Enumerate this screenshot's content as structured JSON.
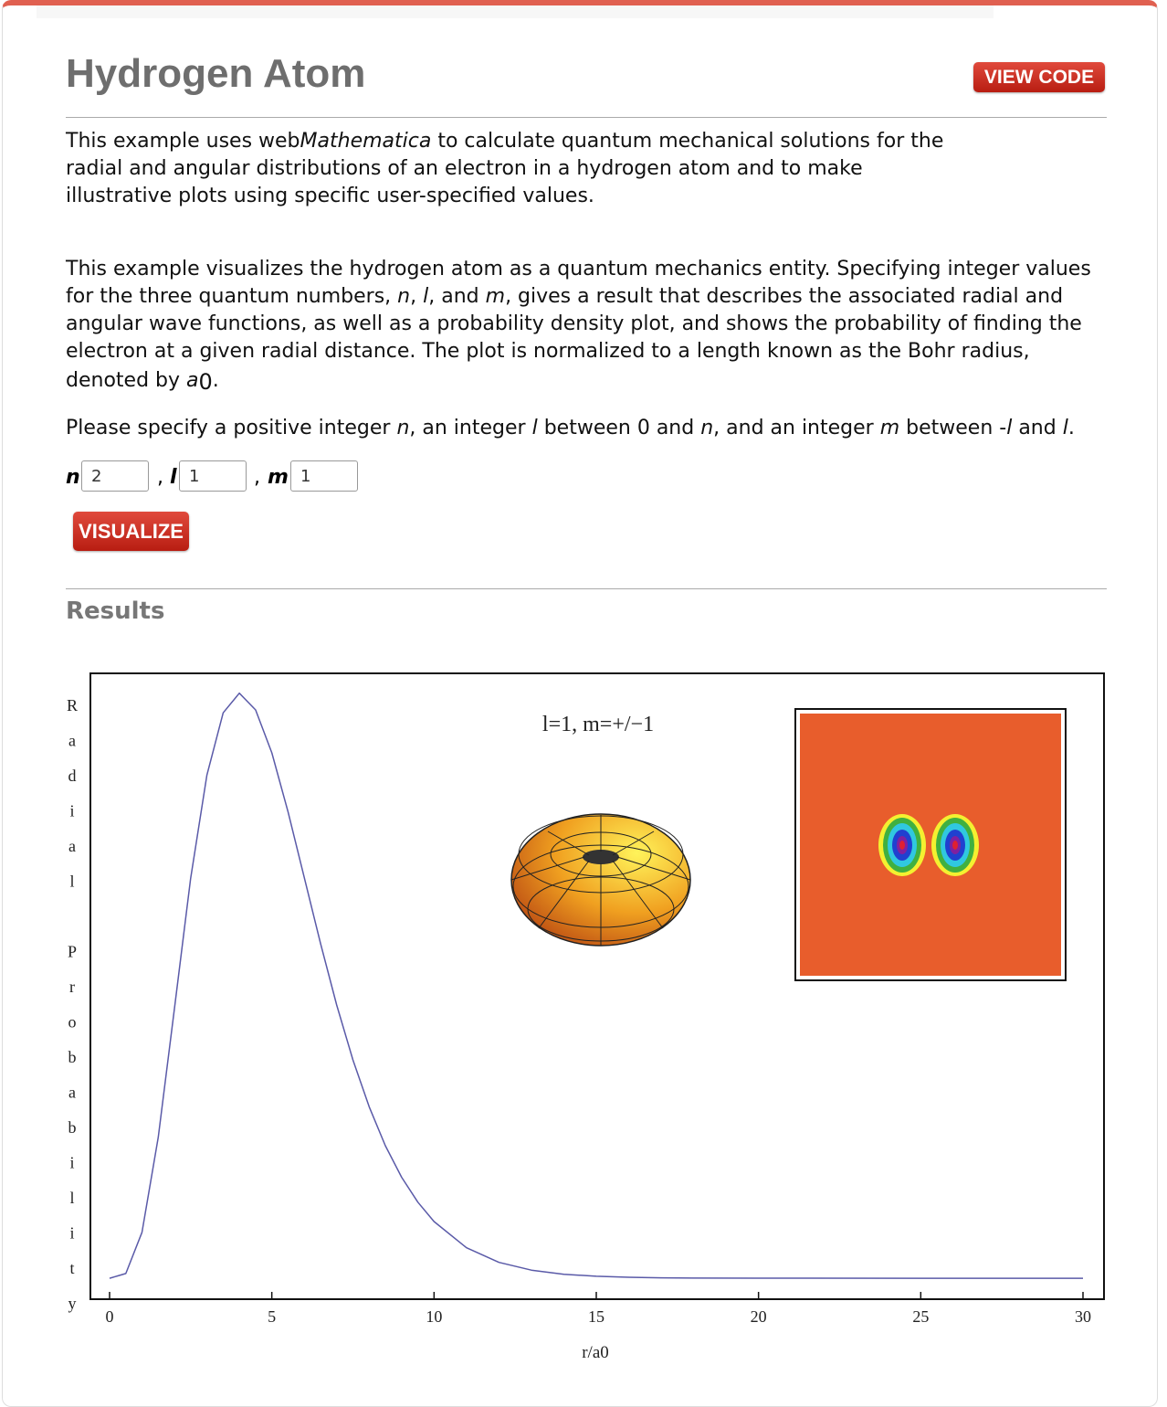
{
  "header": {
    "title": "Hydrogen Atom",
    "button": "VIEW CODE"
  },
  "paragraphs": [
    [
      "This example uses web",
      "Mathematica",
      " to calculate quantum mechanical solutions for the radial and angular distributions of an electron in a hydrogen atom and to make illustrative plots using specific user-specified values."
    ],
    [
      "This example visualizes the hydrogen atom as a quantum mechanics entity. Specifying integer values for the three quantum numbers, ",
      "n",
      ", ",
      "l",
      ", and ",
      "m",
      ", gives a result that describes the associated radial and angular wave functions, as well as a probability density plot, and shows the probability of finding the electron at a given radial distance. The plot is normalized to a length known as the Bohr radius, denoted by ",
      "a",
      "0",
      "."
    ],
    [
      "Please specify a positive integer ",
      "n",
      ", an integer ",
      "l",
      " between 0 and ",
      "n",
      ", and an integer ",
      "m",
      " between -",
      "l",
      " and ",
      "l",
      "."
    ]
  ],
  "form": {
    "fields": [
      {
        "label": "n",
        "value": "2"
      },
      {
        "label": "l",
        "value": "1"
      },
      {
        "label": "m",
        "value": "1"
      }
    ],
    "separator": ",",
    "button": "VISUALIZE"
  },
  "results_heading": "Results",
  "chart_data": {
    "type": "line",
    "y_label": "Radial Probability",
    "x_label": "r/a0",
    "annotation": "l=1, m=+/−1",
    "x": [
      0,
      0.5,
      1,
      1.5,
      2,
      2.5,
      3,
      3.5,
      4,
      4.5,
      5,
      5.5,
      6,
      6.5,
      7,
      7.5,
      8,
      8.5,
      9,
      9.5,
      10,
      11,
      12,
      13,
      14,
      15,
      16,
      17,
      18,
      20,
      25,
      30
    ],
    "series": [
      {
        "color": "#5a5aa8",
        "values": [
          0,
          0.00158,
          0.01533,
          0.04707,
          0.09022,
          0.1336,
          0.16803,
          0.18881,
          0.19537,
          0.18981,
          0.17547,
          0.15582,
          0.13385,
          0.11182,
          0.09123,
          0.07292,
          0.05725,
          0.04425,
          0.03374,
          0.0254,
          0.01892,
          0.01019,
          0.00531,
          0.00269,
          0.00133,
          0.00065,
          0.00031,
          0.00014,
          6e-05,
          1e-05,
          0,
          0
        ]
      }
    ],
    "xlim": [
      0,
      30
    ],
    "xticks": [
      0,
      5,
      10,
      15,
      20,
      25,
      30
    ],
    "ylim": [
      -0.007,
      0.202
    ]
  }
}
